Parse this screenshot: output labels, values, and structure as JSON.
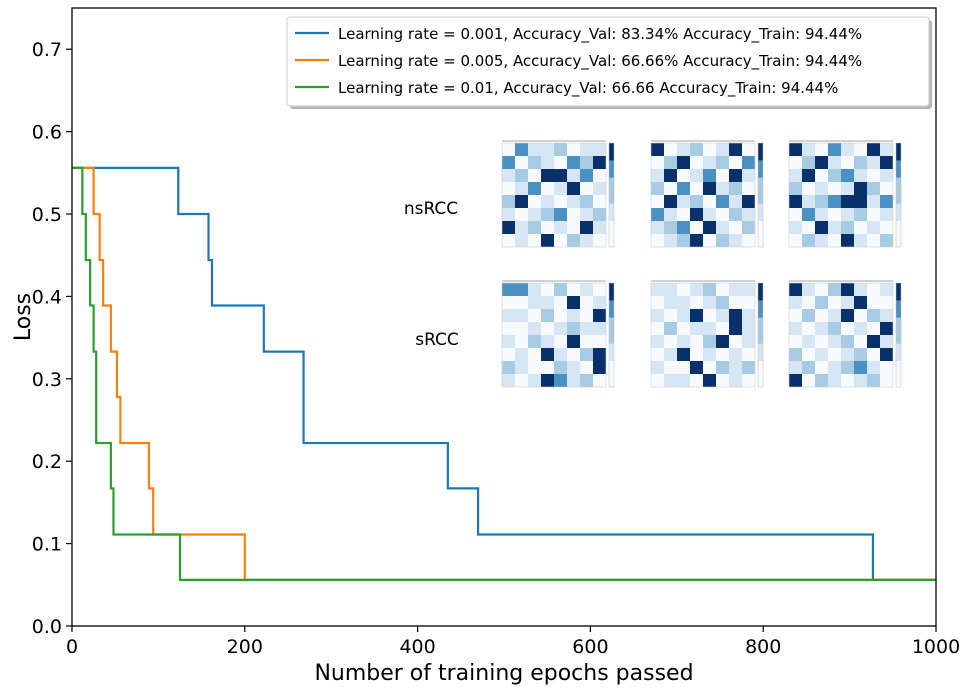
{
  "chart_data": {
    "type": "line",
    "title": "",
    "xlabel": "Number of training epochs passed",
    "ylabel": "Loss",
    "xlim": [
      0,
      1000
    ],
    "ylim": [
      0,
      0.75
    ],
    "xticks": [
      0,
      200,
      400,
      600,
      800,
      1000
    ],
    "yticks": [
      0.0,
      0.1,
      0.2,
      0.3,
      0.4,
      0.5,
      0.6,
      0.7
    ],
    "xtick_labels": [
      "0",
      "200",
      "400",
      "600",
      "800",
      "1000"
    ],
    "ytick_labels": [
      "0.0",
      "0.1",
      "0.2",
      "0.3",
      "0.4",
      "0.5",
      "0.6",
      "0.7"
    ],
    "grid": false,
    "legend_position": "top-right",
    "step": true,
    "series": [
      {
        "name": "Learning rate = 0.001, Accuracy_Val: 83.34% Accuracy_Train: 94.44%",
        "color": "#1f77b4",
        "x": [
          0,
          123,
          158,
          162,
          222,
          268,
          435,
          470,
          927,
          1000
        ],
        "y": [
          0.556,
          0.5,
          0.444,
          0.389,
          0.333,
          0.222,
          0.167,
          0.111,
          0.056,
          0.056
        ]
      },
      {
        "name": "Learning rate = 0.005, Accuracy_Val: 66.66% Accuracy_Train: 94.44%",
        "color": "#ff7f0e",
        "x": [
          0,
          25,
          32,
          36,
          45,
          52,
          56,
          89,
          94,
          200,
          1000
        ],
        "y": [
          0.556,
          0.5,
          0.444,
          0.389,
          0.333,
          0.278,
          0.222,
          0.167,
          0.111,
          0.056,
          0.056
        ]
      },
      {
        "name": "Learning rate = 0.01, Accuracy_Val: 66.66 Accuracy_Train: 94.44%",
        "color": "#2ca02c",
        "x": [
          0,
          12,
          16,
          21,
          25,
          28,
          45,
          48,
          125,
          1000
        ],
        "y": [
          0.556,
          0.5,
          0.444,
          0.389,
          0.333,
          0.222,
          0.167,
          0.111,
          0.056,
          0.056
        ]
      }
    ],
    "inset": {
      "row_labels": [
        "nsRCC",
        "sRCC"
      ],
      "grid_size": 8,
      "matrices": [
        [
          [
            0,
            3,
            1,
            1,
            2,
            0,
            1,
            1
          ],
          [
            3,
            0,
            2,
            1,
            0,
            3,
            2,
            4
          ],
          [
            1,
            2,
            0,
            4,
            4,
            1,
            3,
            0
          ],
          [
            0,
            1,
            3,
            0,
            1,
            4,
            0,
            1
          ],
          [
            2,
            4,
            0,
            1,
            0,
            1,
            2,
            0
          ],
          [
            1,
            0,
            1,
            2,
            3,
            0,
            1,
            2
          ],
          [
            4,
            1,
            2,
            0,
            1,
            0,
            4,
            1
          ],
          [
            0,
            1,
            0,
            4,
            0,
            2,
            1,
            0
          ]
        ],
        [
          [
            4,
            0,
            1,
            2,
            0,
            1,
            4,
            0
          ],
          [
            0,
            2,
            4,
            0,
            1,
            2,
            0,
            3
          ],
          [
            1,
            4,
            0,
            1,
            3,
            0,
            4,
            1
          ],
          [
            2,
            0,
            3,
            0,
            4,
            1,
            2,
            0
          ],
          [
            0,
            4,
            1,
            2,
            0,
            3,
            1,
            4
          ],
          [
            3,
            1,
            0,
            4,
            1,
            0,
            2,
            1
          ],
          [
            1,
            2,
            3,
            0,
            4,
            1,
            0,
            2
          ],
          [
            0,
            1,
            2,
            4,
            0,
            2,
            1,
            0
          ]
        ],
        [
          [
            4,
            1,
            0,
            3,
            1,
            0,
            4,
            1
          ],
          [
            0,
            2,
            4,
            1,
            0,
            2,
            1,
            4
          ],
          [
            1,
            4,
            0,
            2,
            3,
            1,
            0,
            1
          ],
          [
            2,
            0,
            1,
            0,
            1,
            4,
            2,
            0
          ],
          [
            4,
            1,
            2,
            3,
            4,
            4,
            1,
            3
          ],
          [
            0,
            3,
            1,
            0,
            1,
            2,
            0,
            1
          ],
          [
            1,
            0,
            4,
            1,
            2,
            0,
            1,
            0
          ],
          [
            0,
            2,
            1,
            0,
            4,
            1,
            0,
            2
          ]
        ],
        [
          [
            3,
            3,
            1,
            0,
            2,
            0,
            1,
            0
          ],
          [
            0,
            0,
            1,
            1,
            0,
            4,
            0,
            1
          ],
          [
            1,
            1,
            0,
            2,
            0,
            1,
            0,
            4
          ],
          [
            0,
            0,
            1,
            0,
            1,
            2,
            1,
            1
          ],
          [
            1,
            0,
            2,
            1,
            0,
            4,
            0,
            0
          ],
          [
            0,
            1,
            0,
            4,
            1,
            0,
            2,
            4
          ],
          [
            2,
            1,
            0,
            0,
            2,
            1,
            0,
            4
          ],
          [
            1,
            0,
            1,
            4,
            3,
            1,
            2,
            0
          ]
        ],
        [
          [
            1,
            1,
            0,
            1,
            2,
            0,
            1,
            1
          ],
          [
            0,
            1,
            1,
            0,
            1,
            2,
            0,
            0
          ],
          [
            1,
            0,
            1,
            4,
            0,
            1,
            4,
            1
          ],
          [
            0,
            2,
            0,
            1,
            1,
            0,
            4,
            1
          ],
          [
            1,
            0,
            1,
            0,
            2,
            4,
            0,
            1
          ],
          [
            0,
            1,
            4,
            0,
            1,
            0,
            1,
            0
          ],
          [
            1,
            0,
            0,
            4,
            0,
            2,
            1,
            2
          ],
          [
            0,
            1,
            1,
            0,
            4,
            0,
            1,
            0
          ]
        ],
        [
          [
            4,
            1,
            0,
            2,
            4,
            1,
            0,
            1
          ],
          [
            1,
            0,
            2,
            0,
            1,
            4,
            0,
            0
          ],
          [
            0,
            2,
            0,
            1,
            4,
            0,
            2,
            1
          ],
          [
            1,
            0,
            1,
            2,
            0,
            1,
            0,
            4
          ],
          [
            0,
            1,
            0,
            1,
            2,
            0,
            4,
            1
          ],
          [
            2,
            0,
            1,
            0,
            1,
            2,
            0,
            4
          ],
          [
            1,
            2,
            0,
            1,
            2,
            3,
            1,
            0
          ],
          [
            4,
            0,
            2,
            1,
            0,
            1,
            2,
            0
          ]
        ]
      ]
    }
  }
}
